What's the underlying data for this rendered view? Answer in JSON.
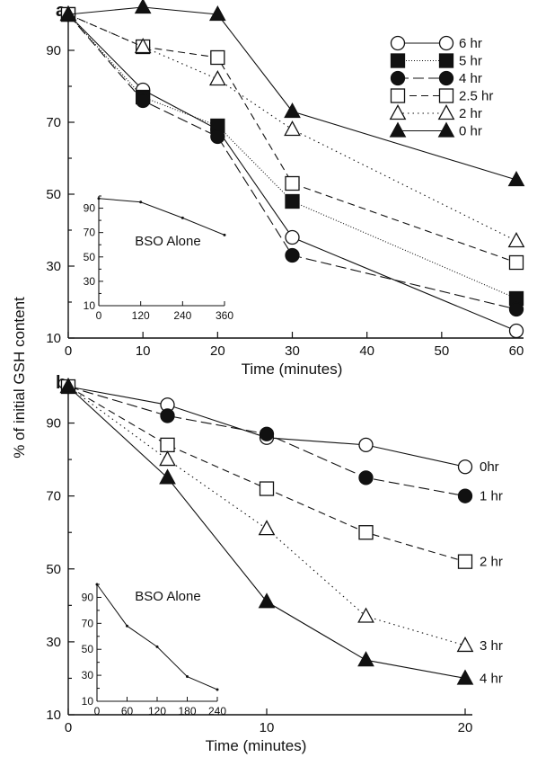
{
  "figure": {
    "ylabel": "% of initial GSH content"
  },
  "chart_data": [
    {
      "panel": "a",
      "type": "line",
      "xlabel": "Time (minutes)",
      "ylabel": "% of initial GSH content",
      "xlim": [
        0,
        60
      ],
      "ylim": [
        10,
        100
      ],
      "xticks": [
        0,
        10,
        20,
        30,
        40,
        50,
        60
      ],
      "yticks": [
        10,
        30,
        50,
        70,
        90
      ],
      "legend_position": "top-right",
      "series": [
        {
          "name": "6 hr",
          "marker": "circle-open",
          "dash": "solid",
          "x": [
            0,
            10,
            20,
            30,
            60
          ],
          "y": [
            100,
            79,
            68,
            38,
            12
          ]
        },
        {
          "name": "5 hr",
          "marker": "square-filled",
          "dash": "dotted-fine",
          "x": [
            0,
            10,
            20,
            30,
            60
          ],
          "y": [
            100,
            77,
            69,
            48,
            21
          ]
        },
        {
          "name": "4 hr",
          "marker": "circle-filled",
          "dash": "long-dash",
          "x": [
            0,
            10,
            20,
            30,
            60
          ],
          "y": [
            100,
            76,
            66,
            33,
            18
          ]
        },
        {
          "name": "2.5 hr",
          "marker": "square-open",
          "dash": "dash",
          "x": [
            0,
            10,
            20,
            30,
            60
          ],
          "y": [
            100,
            91,
            88,
            53,
            31
          ]
        },
        {
          "name": "2 hr",
          "marker": "triangle-open",
          "dash": "dotted",
          "x": [
            0,
            10,
            20,
            30,
            60
          ],
          "y": [
            100,
            91,
            82,
            68,
            37
          ]
        },
        {
          "name": "0 hr",
          "marker": "triangle-filled",
          "dash": "solid",
          "x": [
            0,
            10,
            20,
            30,
            60
          ],
          "y": [
            100,
            102,
            100,
            73,
            54
          ]
        }
      ],
      "inset": {
        "title": "BSO Alone",
        "xlim": [
          0,
          360
        ],
        "ylim": [
          10,
          100
        ],
        "xticks": [
          0,
          120,
          240,
          360
        ],
        "yticks": [
          10,
          30,
          50,
          70,
          90
        ],
        "series": [
          {
            "x": [
              0,
              120,
              240,
              360
            ],
            "y": [
              98,
              95,
              82,
              68
            ]
          }
        ]
      }
    },
    {
      "panel": "b",
      "type": "line",
      "xlabel": "Time (minutes)",
      "ylabel": "% of initial GSH content",
      "xlim": [
        0,
        20
      ],
      "ylim": [
        10,
        100
      ],
      "xticks": [
        0,
        10,
        20
      ],
      "yticks": [
        10,
        30,
        50,
        70,
        90
      ],
      "legend_position": "end-labels",
      "series": [
        {
          "name": "0hr",
          "marker": "circle-open",
          "dash": "solid",
          "x": [
            0,
            5,
            10,
            15,
            20
          ],
          "y": [
            100,
            95,
            86,
            84,
            78
          ]
        },
        {
          "name": "1 hr",
          "marker": "circle-filled",
          "dash": "long-dash",
          "x": [
            0,
            5,
            10,
            15,
            20
          ],
          "y": [
            100,
            92,
            87,
            75,
            70
          ]
        },
        {
          "name": "2 hr",
          "marker": "square-open",
          "dash": "dash",
          "x": [
            0,
            5,
            10,
            15,
            20
          ],
          "y": [
            100,
            84,
            72,
            60,
            52
          ]
        },
        {
          "name": "3 hr",
          "marker": "triangle-open",
          "dash": "dotted",
          "x": [
            0,
            5,
            10,
            15,
            20
          ],
          "y": [
            100,
            80,
            61,
            37,
            29
          ]
        },
        {
          "name": "4 hr",
          "marker": "triangle-filled",
          "dash": "solid",
          "x": [
            0,
            5,
            10,
            15,
            20
          ],
          "y": [
            100,
            75,
            41,
            25,
            20
          ]
        }
      ],
      "inset": {
        "title": "BSO Alone",
        "xlim": [
          0,
          240
        ],
        "ylim": [
          10,
          100
        ],
        "xticks": [
          0,
          60,
          120,
          180,
          240
        ],
        "yticks": [
          10,
          30,
          50,
          70,
          90
        ],
        "series": [
          {
            "x": [
              0,
              60,
              120,
              180,
              240
            ],
            "y": [
              100,
              68,
              52,
              29,
              19
            ]
          }
        ]
      }
    }
  ]
}
